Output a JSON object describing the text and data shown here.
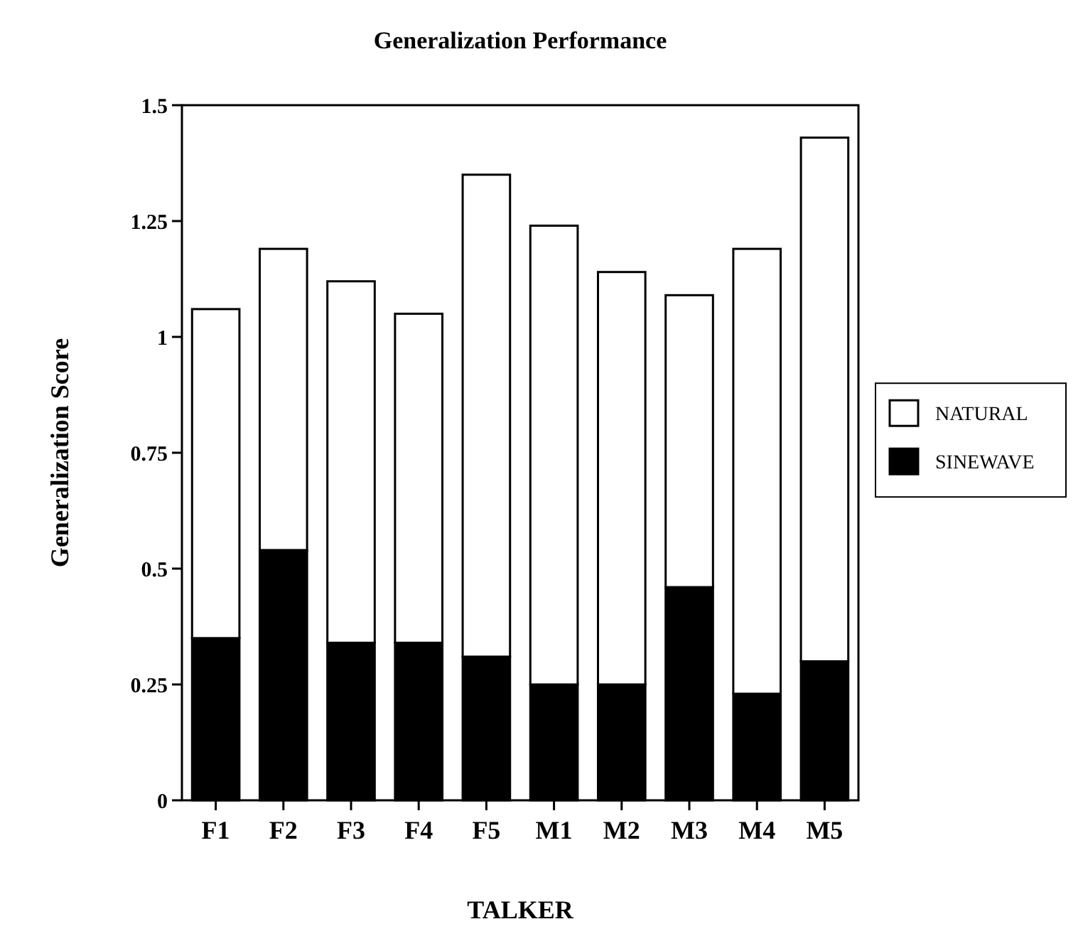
{
  "chart_data": {
    "type": "bar",
    "title": "Generalization Performance",
    "xlabel": "TALKER",
    "ylabel": "Generalization  Score",
    "categories": [
      "F1",
      "F2",
      "F3",
      "F4",
      "F5",
      "M1",
      "M2",
      "M3",
      "M4",
      "M5"
    ],
    "stacked": true,
    "series": [
      {
        "name": "SINEWAVE",
        "color": "#000000",
        "values": [
          0.35,
          0.54,
          0.34,
          0.34,
          0.31,
          0.25,
          0.25,
          0.46,
          0.23,
          0.3
        ]
      },
      {
        "name": "NATURAL",
        "color": "#ffffff",
        "values": [
          0.71,
          0.65,
          0.78,
          0.71,
          1.04,
          0.99,
          0.89,
          0.63,
          0.96,
          1.13
        ]
      }
    ],
    "ylim": [
      0,
      1.5
    ],
    "yticks": [
      0,
      0.25,
      0.5,
      0.75,
      1,
      1.25,
      1.5
    ],
    "grid": false,
    "legend": "right"
  }
}
